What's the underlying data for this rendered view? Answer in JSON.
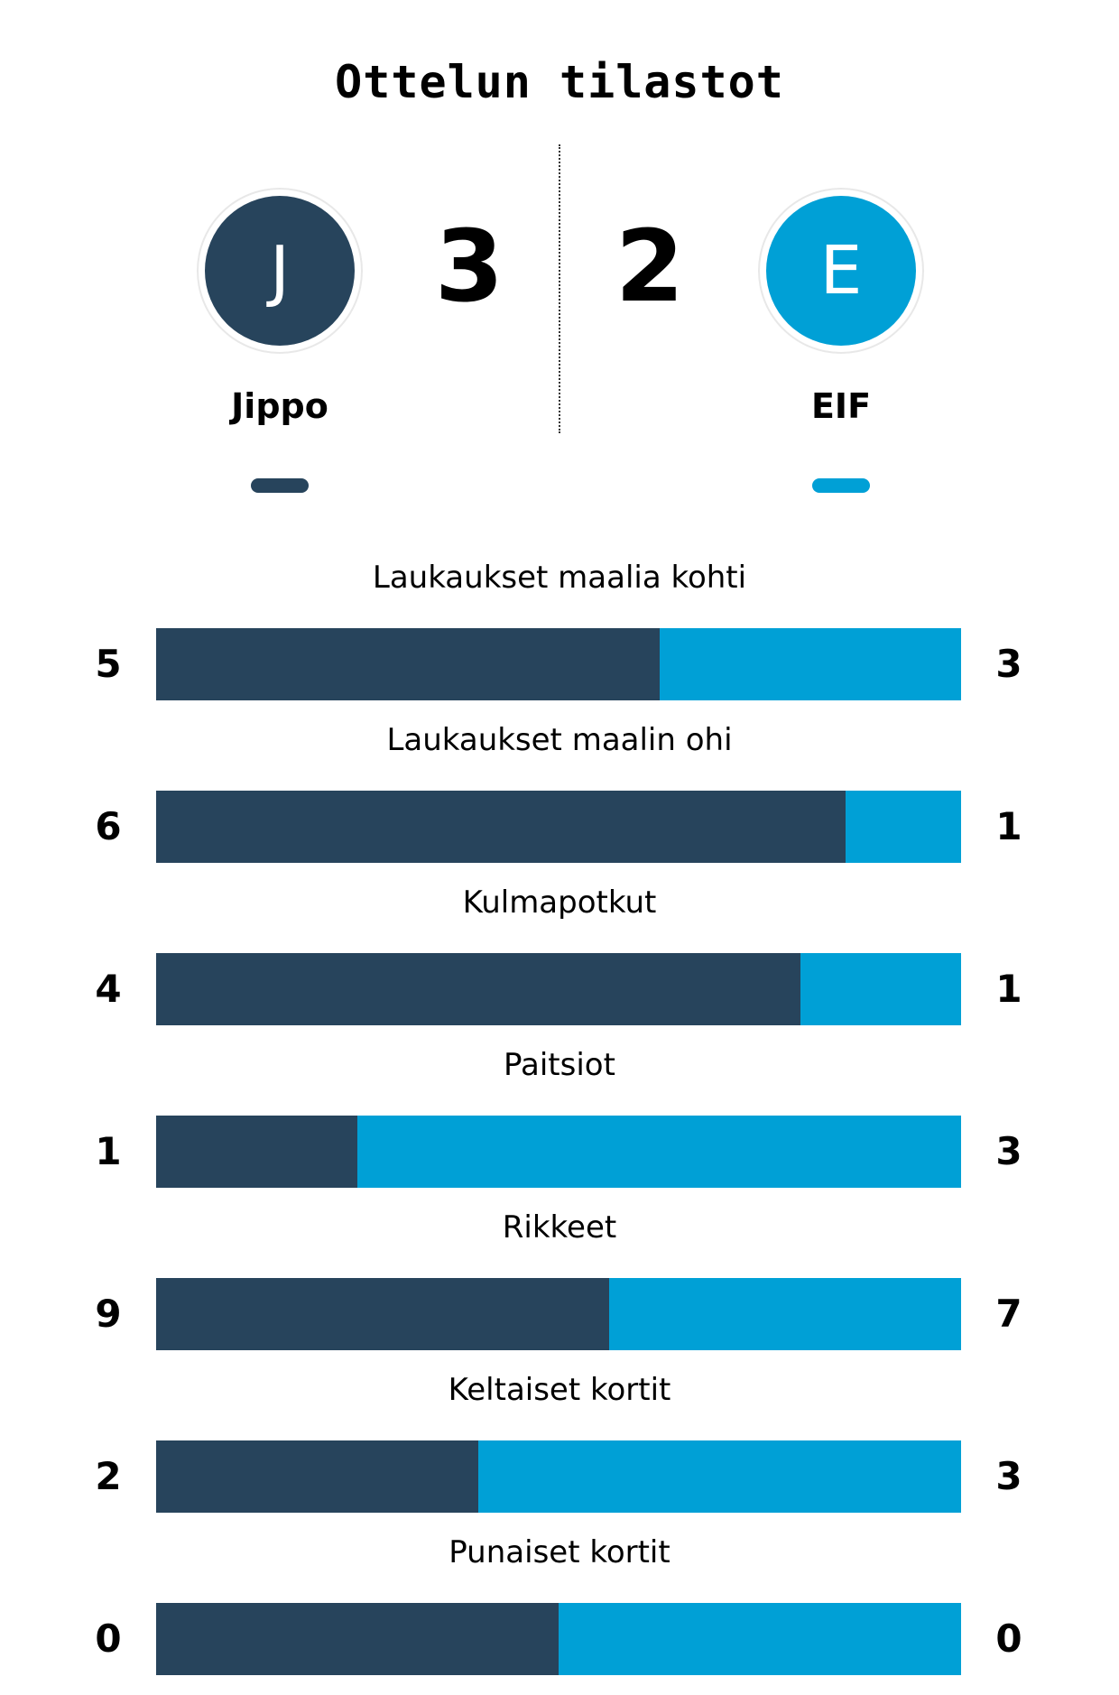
{
  "title": "Ottelun tilastot",
  "colors": {
    "home": "#27445c",
    "away": "#00a0d6"
  },
  "home": {
    "initial": "J",
    "name": "Jippo",
    "score": "3"
  },
  "away": {
    "initial": "E",
    "name": "EIF",
    "score": "2"
  },
  "stats": [
    {
      "label": "Laukaukset maalia kohti",
      "home": 5,
      "away": 3,
      "home_share": 0.625
    },
    {
      "label": "Laukaukset maalin ohi",
      "home": 6,
      "away": 1,
      "home_share": 0.857
    },
    {
      "label": "Kulmapotkut",
      "home": 4,
      "away": 1,
      "home_share": 0.8
    },
    {
      "label": "Paitsiot",
      "home": 1,
      "away": 3,
      "home_share": 0.25
    },
    {
      "label": "Rikkeet",
      "home": 9,
      "away": 7,
      "home_share": 0.5625
    },
    {
      "label": "Keltaiset kortit",
      "home": 2,
      "away": 3,
      "home_share": 0.4
    },
    {
      "label": "Punaiset kortit",
      "home": 0,
      "away": 0,
      "home_share": 0.5
    }
  ]
}
